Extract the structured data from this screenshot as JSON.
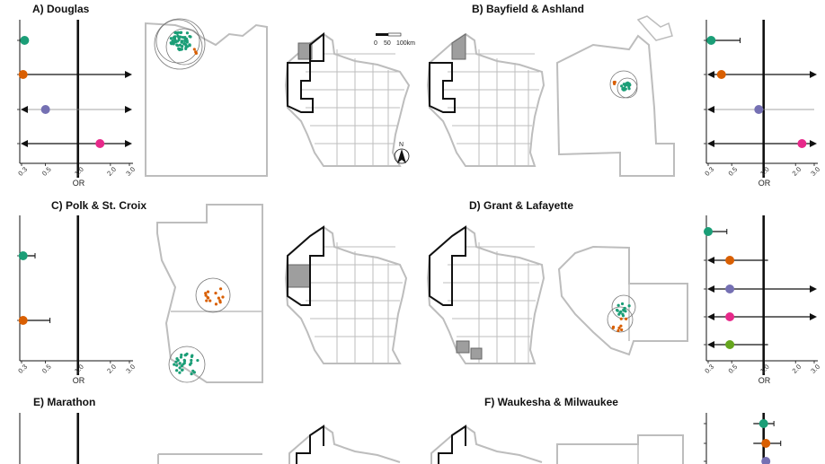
{
  "colors": {
    "green": "#1b9e77",
    "orange": "#d95f02",
    "purple": "#7570b3",
    "magenta": "#e7298a",
    "lime": "#66a61e",
    "county_fill": "#9e9e9e",
    "county_line": "#bdbdbd"
  },
  "scalebar": {
    "tick0": "0",
    "tick1": "50",
    "tick2": "100km"
  },
  "north_label": "N",
  "chart_data": [
    {
      "id": "A",
      "type": "forest",
      "title": "A) Douglas",
      "xlabel": "OR",
      "x_ticks": [
        "0.3",
        "0.5",
        "1.0",
        "2.0",
        "3.0"
      ],
      "x_scale": "log",
      "ref_line": 1.0,
      "points": [
        {
          "or": 0.32,
          "lo": 0.3,
          "hi": 0.33,
          "arrow_lo": false,
          "arrow_hi": false,
          "color": "green"
        },
        {
          "or": 0.31,
          "lo": 0.3,
          "hi": 3.0,
          "arrow_lo": false,
          "arrow_hi": true,
          "color": "orange"
        },
        {
          "or": 0.5,
          "lo": 0.3,
          "hi": 3.0,
          "arrow_lo": true,
          "arrow_hi": true,
          "color": "purple",
          "thin": true
        },
        {
          "or": 1.6,
          "lo": 0.3,
          "hi": 3.0,
          "arrow_lo": true,
          "arrow_hi": true,
          "color": "magenta"
        }
      ]
    },
    {
      "id": "B",
      "type": "forest",
      "title": "B) Bayfield & Ashland",
      "xlabel": "OR",
      "x_ticks": [
        "0.3",
        "0.5",
        "1.0",
        "2.0",
        "3.0"
      ],
      "x_scale": "log",
      "ref_line": 1.0,
      "points": [
        {
          "or": 0.32,
          "lo": 0.3,
          "hi": 0.6,
          "arrow_lo": false,
          "arrow_hi": false,
          "color": "green"
        },
        {
          "or": 0.4,
          "lo": 0.3,
          "hi": 3.0,
          "arrow_lo": true,
          "arrow_hi": true,
          "color": "orange"
        },
        {
          "or": 0.9,
          "lo": 0.3,
          "hi": 3.0,
          "arrow_lo": true,
          "arrow_hi": false,
          "color": "purple",
          "thin": true
        },
        {
          "or": 2.3,
          "lo": 0.3,
          "hi": 3.0,
          "arrow_lo": true,
          "arrow_hi": true,
          "color": "magenta"
        }
      ]
    },
    {
      "id": "C",
      "type": "forest",
      "title": "C) Polk & St. Croix",
      "xlabel": "OR",
      "x_ticks": [
        "0.3",
        "0.5",
        "1.0",
        "2.0",
        "3.0"
      ],
      "x_scale": "log",
      "ref_line": 1.0,
      "points": [
        {
          "or": 0.31,
          "lo": 0.3,
          "hi": 0.4,
          "arrow_lo": false,
          "arrow_hi": false,
          "color": "green"
        },
        {
          "or": 0.31,
          "lo": 0.3,
          "hi": 0.55,
          "arrow_lo": false,
          "arrow_hi": false,
          "color": "orange"
        }
      ]
    },
    {
      "id": "D",
      "type": "forest",
      "title": "D) Grant & Lafayette",
      "xlabel": "OR",
      "x_ticks": [
        "0.3",
        "0.5",
        "1.0",
        "2.0",
        "3.0"
      ],
      "x_scale": "log",
      "ref_line": 1.0,
      "points": [
        {
          "or": 0.3,
          "lo": 0.3,
          "hi": 0.45,
          "arrow_lo": false,
          "arrow_hi": false,
          "color": "green"
        },
        {
          "or": 0.48,
          "lo": 0.3,
          "hi": 1.1,
          "arrow_lo": true,
          "arrow_hi": false,
          "color": "orange"
        },
        {
          "or": 0.48,
          "lo": 0.3,
          "hi": 3.0,
          "arrow_lo": true,
          "arrow_hi": true,
          "color": "purple"
        },
        {
          "or": 0.48,
          "lo": 0.3,
          "hi": 3.0,
          "arrow_lo": true,
          "arrow_hi": true,
          "color": "magenta"
        },
        {
          "or": 0.48,
          "lo": 0.3,
          "hi": 1.1,
          "arrow_lo": true,
          "arrow_hi": false,
          "color": "lime"
        }
      ]
    },
    {
      "id": "E",
      "type": "forest",
      "title": "E) Marathon",
      "xlabel": "",
      "x_ticks": [],
      "x_scale": "log",
      "ref_line": 1.0,
      "points": []
    },
    {
      "id": "F",
      "type": "forest",
      "title": "F) Waukesha & Milwaukee",
      "xlabel": "",
      "x_ticks": [],
      "x_scale": "log",
      "ref_line": 1.0,
      "points": [
        {
          "or": 1.0,
          "lo": 0.8,
          "hi": 1.25,
          "arrow_lo": false,
          "arrow_hi": false,
          "color": "green"
        },
        {
          "or": 1.05,
          "lo": 0.8,
          "hi": 1.45,
          "arrow_lo": false,
          "arrow_hi": false,
          "color": "orange"
        },
        {
          "or": 1.05,
          "lo": 1.05,
          "hi": 1.05,
          "arrow_lo": false,
          "arrow_hi": false,
          "color": "purple"
        }
      ]
    }
  ]
}
